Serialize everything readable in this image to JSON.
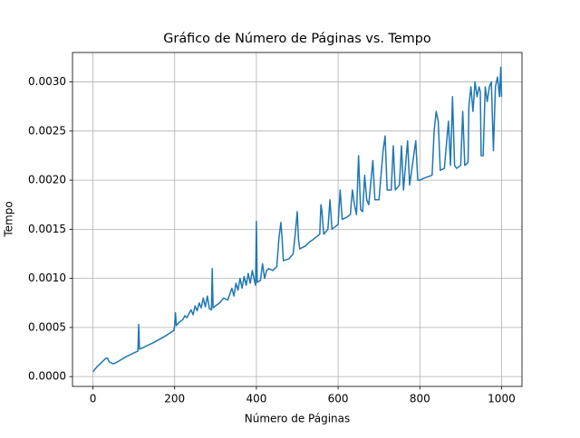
{
  "chart_data": {
    "type": "line",
    "title": "Gráfico de Número de Páginas vs. Tempo",
    "x_label": "Número de Páginas",
    "y_label": "Tempo",
    "xlim": [
      -50,
      1050
    ],
    "ylim": [
      -0.0001,
      0.0033
    ],
    "xticks": [
      0,
      200,
      400,
      600,
      800,
      1000
    ],
    "yticks": [
      {
        "value": 0,
        "label": "0.0000"
      },
      {
        "value": 0.0005,
        "label": "0.0005"
      },
      {
        "value": 0.001,
        "label": "0.0010"
      },
      {
        "value": 0.0015,
        "label": "0.0015"
      },
      {
        "value": 0.002,
        "label": "0.0020"
      },
      {
        "value": 0.0025,
        "label": "0.0025"
      },
      {
        "value": 0.003,
        "label": "0.0030"
      }
    ],
    "grid": true,
    "color": "#1f77b4",
    "x": [
      0,
      10,
      20,
      30,
      35,
      40,
      50,
      60,
      80,
      100,
      110,
      112,
      114,
      120,
      150,
      180,
      198,
      200,
      202,
      204,
      210,
      220,
      225,
      230,
      240,
      245,
      250,
      255,
      260,
      265,
      270,
      275,
      280,
      285,
      290,
      292,
      294,
      300,
      310,
      320,
      330,
      340,
      345,
      350,
      355,
      360,
      365,
      370,
      375,
      380,
      385,
      390,
      395,
      398,
      400,
      402,
      410,
      415,
      420,
      425,
      430,
      440,
      450,
      455,
      460,
      463,
      466,
      480,
      490,
      495,
      500,
      503,
      506,
      520,
      530,
      540,
      555,
      558,
      560,
      565,
      575,
      580,
      585,
      600,
      605,
      610,
      620,
      630,
      635,
      640,
      645,
      650,
      655,
      660,
      665,
      670,
      675,
      685,
      690,
      700,
      710,
      715,
      720,
      730,
      735,
      740,
      750,
      755,
      760,
      770,
      775,
      790,
      795,
      800,
      810,
      830,
      835,
      840,
      845,
      850,
      860,
      870,
      875,
      880,
      885,
      890,
      900,
      905,
      910,
      918,
      920,
      925,
      930,
      935,
      940,
      945,
      948,
      950,
      955,
      960,
      965,
      970,
      975,
      980,
      985,
      990,
      995,
      998,
      1000
    ],
    "values": [
      5e-05,
      0.0001,
      0.00014,
      0.00018,
      0.00019,
      0.00015,
      0.00013,
      0.00015,
      0.0002,
      0.00024,
      0.00026,
      0.00053,
      0.00028,
      0.00029,
      0.00035,
      0.00042,
      0.00047,
      0.00052,
      0.00065,
      0.00052,
      0.00055,
      0.00058,
      0.00062,
      0.0006,
      0.00068,
      0.00063,
      0.00072,
      0.00067,
      0.00075,
      0.0007,
      0.0008,
      0.00071,
      0.00082,
      0.00069,
      0.00068,
      0.0011,
      0.0007,
      0.00072,
      0.00075,
      0.0008,
      0.00078,
      0.0009,
      0.00082,
      0.00095,
      0.00088,
      0.001,
      0.0009,
      0.00102,
      0.00093,
      0.00105,
      0.00095,
      0.00108,
      0.00098,
      0.00093,
      0.00158,
      0.00096,
      0.00098,
      0.00115,
      0.001,
      0.00108,
      0.0011,
      0.00108,
      0.00112,
      0.0014,
      0.00157,
      0.0014,
      0.00118,
      0.0012,
      0.00125,
      0.00145,
      0.00168,
      0.0014,
      0.0013,
      0.00133,
      0.00137,
      0.0014,
      0.00145,
      0.00175,
      0.0017,
      0.00145,
      0.0015,
      0.0018,
      0.0015,
      0.00155,
      0.0019,
      0.0016,
      0.00162,
      0.00165,
      0.0019,
      0.00175,
      0.00165,
      0.00225,
      0.0017,
      0.00168,
      0.00205,
      0.0018,
      0.00175,
      0.0022,
      0.0018,
      0.0018,
      0.0023,
      0.00245,
      0.0019,
      0.0019,
      0.00235,
      0.0019,
      0.00195,
      0.00235,
      0.0019,
      0.0024,
      0.00195,
      0.0024,
      0.002,
      0.002,
      0.00202,
      0.00205,
      0.0025,
      0.0027,
      0.0026,
      0.0021,
      0.00212,
      0.0026,
      0.00215,
      0.00285,
      0.00215,
      0.00212,
      0.00215,
      0.0027,
      0.00215,
      0.00218,
      0.00275,
      0.00295,
      0.0027,
      0.003,
      0.00285,
      0.00295,
      0.0029,
      0.00225,
      0.00225,
      0.00295,
      0.0028,
      0.00295,
      0.003,
      0.0023,
      0.00295,
      0.00305,
      0.00285,
      0.00315,
      0.00285
    ]
  }
}
